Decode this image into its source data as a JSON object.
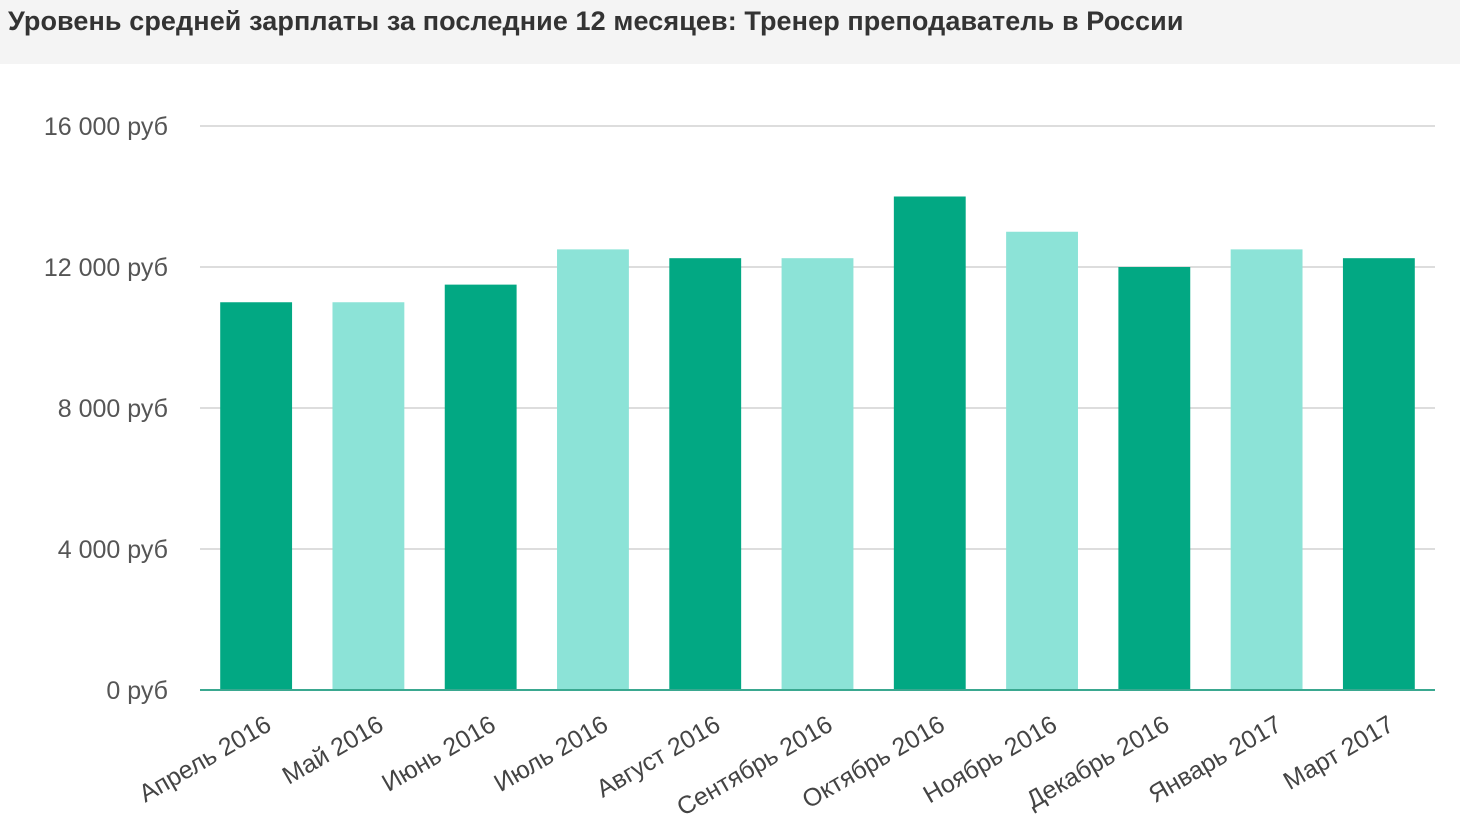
{
  "header": {
    "title": "Уровень средней зарплаты за последние 12 месяцев: Тренер преподаватель в России"
  },
  "colors": {
    "dark": "#02a883",
    "light": "#8ce3d7",
    "grid": "#dddddd",
    "baseline": "#3aa890"
  },
  "chart_data": {
    "type": "bar",
    "title": "Уровень средней зарплаты за последние 12 месяцев: Тренер преподаватель в России",
    "xlabel": "",
    "ylabel": "",
    "ylim": [
      0,
      16000
    ],
    "yticks": [
      0,
      4000,
      8000,
      12000,
      16000
    ],
    "ytick_labels": [
      "0 руб",
      "4 000 руб",
      "8 000 руб",
      "12 000 руб",
      "16 000 руб"
    ],
    "grid": true,
    "categories": [
      "Апрель 2016",
      "Май 2016",
      "Июнь 2016",
      "Июль 2016",
      "Август 2016",
      "Сентябрь 2016",
      "Октябрь 2016",
      "Ноябрь 2016",
      "Декабрь 2016",
      "Январь 2017",
      "Март 2017"
    ],
    "values": [
      11000,
      11000,
      11500,
      12500,
      12250,
      12250,
      14000,
      13000,
      12000,
      12500,
      12250
    ],
    "bar_shades": [
      "dark",
      "light",
      "dark",
      "light",
      "dark",
      "light",
      "dark",
      "light",
      "dark",
      "light",
      "dark"
    ]
  }
}
